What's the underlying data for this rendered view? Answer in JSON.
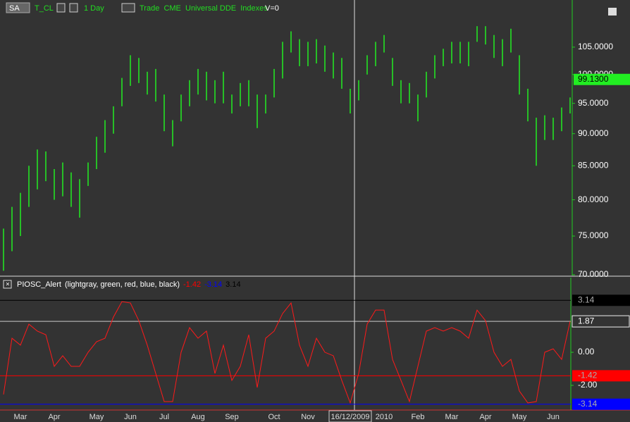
{
  "toolbar": {
    "symbol_box": "SA",
    "interval": "1 Day",
    "tags": "Trade  CME  Universal DDE  Indexes",
    "volume": "V=0"
  },
  "chart_data": [
    {
      "type": "ohlc",
      "categories": [
        null,
        null,
        "Mar",
        null,
        null,
        null,
        "Apr",
        null,
        null,
        null,
        null,
        "May",
        null,
        null,
        null,
        "Jun",
        null,
        null,
        null,
        "Jul",
        null,
        null,
        null,
        "Aug",
        null,
        null,
        null,
        "Sep",
        null,
        null,
        null,
        null,
        "Oct",
        null,
        null,
        null,
        "Nov",
        null,
        null,
        null,
        null,
        "16/12/2009",
        null,
        null,
        null,
        "2010",
        null,
        null,
        null,
        "Feb",
        null,
        null,
        null,
        "Mar",
        null,
        null,
        null,
        "Apr",
        null,
        null,
        null,
        "May",
        null,
        null,
        null,
        "Jun",
        null,
        null
      ],
      "series": [
        {
          "name": "T_CL",
          "color": "#22ee22",
          "high": [
            76,
            79,
            81,
            85,
            87.5,
            87.2,
            84.5,
            85.5,
            84,
            83,
            85.5,
            89.5,
            92.2,
            94.5,
            99.4,
            103.5,
            103,
            100.5,
            101,
            96.5,
            92.2,
            96.5,
            99,
            101,
            100.5,
            99,
            100.5,
            96.5,
            98.5,
            99,
            96.5,
            96.5,
            101,
            106,
            108,
            106.5,
            106,
            106.5,
            105.3,
            104,
            103,
            97.5,
            99,
            103.5,
            106,
            107.3,
            103,
            99,
            98.5,
            96.5,
            100.5,
            103.5,
            104.7,
            106,
            106,
            106,
            109,
            109,
            107.3,
            106.5,
            108.5,
            103.5,
            97.5,
            92.6,
            93,
            92.6,
            94.3,
            96
          ],
          "low": [
            70.5,
            73,
            75,
            79,
            81.5,
            82.7,
            80,
            80.5,
            79,
            77.5,
            82,
            84.5,
            87,
            90,
            94.5,
            98,
            98.5,
            96.5,
            95.3,
            90.4,
            88,
            92,
            94.5,
            96.5,
            95.5,
            95,
            95,
            93.3,
            94.5,
            94.5,
            90.9,
            93.3,
            96,
            99.3,
            104,
            101.5,
            101.5,
            102,
            100.5,
            99.3,
            97.5,
            93.3,
            95.5,
            100,
            101.5,
            104,
            98,
            95,
            95,
            92,
            96,
            99.3,
            101.5,
            102,
            102,
            101.5,
            106,
            105.5,
            103,
            101.5,
            104,
            96.5,
            92,
            85,
            89,
            89,
            90.4,
            93.3
          ]
        }
      ],
      "ylim": [
        70,
        114.2
      ],
      "log_scale": true,
      "yticks": [
        {
          "value": 70,
          "label": "70.0000"
        },
        {
          "value": 75,
          "label": "75.0000"
        },
        {
          "value": 80,
          "label": "80.0000"
        },
        {
          "value": 85,
          "label": "85.0000"
        },
        {
          "value": 90,
          "label": "90.0000"
        },
        {
          "value": 95,
          "label": "95.0000"
        },
        {
          "value": 100,
          "label": "100.0000"
        },
        {
          "value": 105,
          "label": "105.0000"
        }
      ],
      "last_value": {
        "value": 99.13,
        "label": "99.1300"
      }
    },
    {
      "type": "line",
      "title": "PIOSC_Alert",
      "subtitle": "(lightgray, green, red, blue, black)",
      "series": [
        {
          "color": "#ff1a1a",
          "values": [
            -2.55,
            0.85,
            0.43,
            1.7,
            1.28,
            1.06,
            -0.85,
            -0.21,
            -0.85,
            -0.85,
            0,
            0.64,
            0.85,
            2.13,
            3.06,
            2.98,
            1.91,
            0.43,
            -1.28,
            -2.98,
            -2.98,
            0,
            1.49,
            0.85,
            1.28,
            -1.28,
            0.43,
            -1.7,
            -0.85,
            1.06,
            -2.13,
            0.85,
            1.28,
            2.34,
            2.98,
            0.43,
            -0.85,
            0.85,
            0,
            -0.21,
            -1.7,
            -3.06,
            -1.28,
            1.7,
            2.55,
            2.55,
            -0.43,
            -1.7,
            -2.98,
            -0.85,
            1.28,
            1.49,
            1.28,
            1.49,
            1.28,
            0.85,
            2.55,
            1.91,
            0,
            -0.85,
            -0.43,
            -2.34,
            -3.06,
            -2.98,
            0,
            0.21,
            -0.43,
            1.87
          ]
        }
      ],
      "ylim": [
        -3.49,
        4.43
      ],
      "yticks": [
        {
          "value": 0,
          "label": "0.00"
        },
        {
          "value": -2,
          "label": "-2.00"
        }
      ],
      "levels": [
        {
          "value": -1.42,
          "label": "-1.42",
          "color": "#ff0000"
        },
        {
          "value": -3.14,
          "label": "-3.14",
          "color": "#0000ff"
        },
        {
          "value": 3.14,
          "label": "3.14",
          "color": "#000000"
        }
      ],
      "last_value": {
        "value": 1.87,
        "label": "1.87"
      }
    }
  ]
}
